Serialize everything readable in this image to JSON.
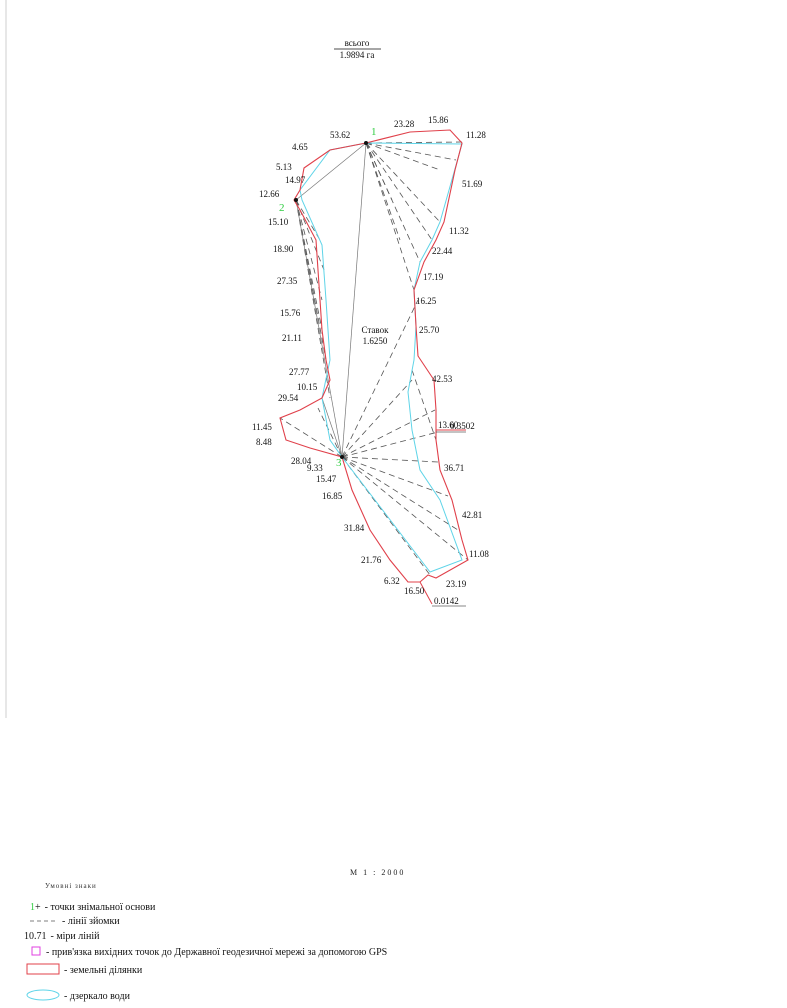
{
  "total": {
    "label": "всього",
    "value": "1.9894 га"
  },
  "parcel": {
    "name": "Ставок",
    "area": "1.6250"
  },
  "point_labels": {
    "p1": "1",
    "p2": "2",
    "p3": "3"
  },
  "small_areas": {
    "a1": "0.3502",
    "a2": "0.0142"
  },
  "measures": {
    "m_53_62": "53.62",
    "m_23_28": "23.28",
    "m_15_86": "15.86",
    "m_11_28": "11.28",
    "m_4_65": "4.65",
    "m_5_13": "5.13",
    "m_14_97": "14.97",
    "m_12_66": "12.66",
    "m_51_69": "51.69",
    "m_15_10": "15.10",
    "m_11_32": "11.32",
    "m_18_90": "18.90",
    "m_22_44": "22.44",
    "m_17_19": "17.19",
    "m_27_35": "27.35",
    "m_16_25": "16.25",
    "m_15_76": "15.76",
    "m_25_70": "25.70",
    "m_21_11": "21.11",
    "m_27_77": "27.77",
    "m_10_15": "10.15",
    "m_42_53": "42.53",
    "m_29_54": "29.54",
    "m_13_60": "13.60",
    "m_11_45": "11.45",
    "m_8_48": "8.48",
    "m_28_04": "28.04",
    "m_9_33": "9.33",
    "m_36_71": "36.71",
    "m_15_47": "15.47",
    "m_16_85": "16.85",
    "m_42_81": "42.81",
    "m_31_84": "31.84",
    "m_11_08": "11.08",
    "m_21_76": "21.76",
    "m_6_32": "6.32",
    "m_16_50": "16.50",
    "m_23_19": "23.19"
  },
  "scale_note": "М     1 : 2000",
  "legend_head": "Умовні знаки",
  "legend": {
    "base_points": "- точки знімальної основи",
    "survey_lines": "- лінії зйомки",
    "measure_sample": "10.71",
    "measure_lines": "- міри ліній",
    "gps_binding": "- прив'язка вихідних точок до Державної геодезичної мережі за допомогою GPS",
    "land_parcels": "- земельні ділянки",
    "water_mirror": "- дзеркало води"
  },
  "colors": {
    "boundary": "#e0404a",
    "water": "#5fd4e8",
    "survey": "#555555",
    "point": "#2ecc40",
    "gps": "#e040e0"
  }
}
